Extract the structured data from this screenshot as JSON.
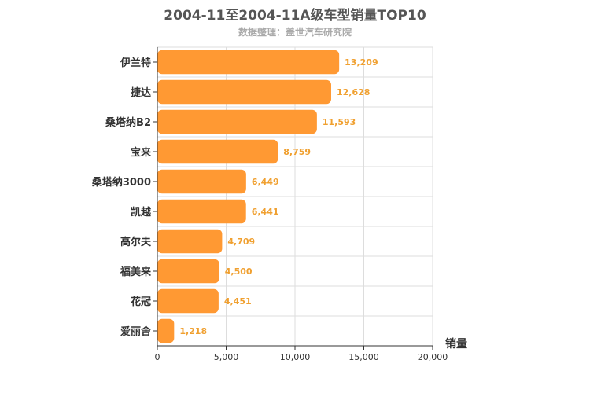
{
  "chart_data": {
    "type": "bar",
    "orientation": "horizontal",
    "title": "2004-11至2004-11A级车型销量TOP10",
    "subtitle": "数据整理：盖世汽车研究院",
    "categories": [
      "伊兰特",
      "捷达",
      "桑塔纳B2",
      "宝来",
      "桑塔纳3000",
      "凯越",
      "高尔夫",
      "福美来",
      "花冠",
      "爱丽舍"
    ],
    "values": [
      13209,
      12628,
      11593,
      8759,
      6449,
      6441,
      4709,
      4500,
      4451,
      1218
    ],
    "value_labels": [
      "13,209",
      "12,628",
      "11,593",
      "8,759",
      "6,449",
      "6,441",
      "4,709",
      "4,500",
      "4,451",
      "1,218"
    ],
    "xlabel": "销量",
    "ylabel": "",
    "xlim": [
      0,
      20000
    ],
    "x_ticks": [
      0,
      5000,
      10000,
      15000,
      20000
    ],
    "x_tick_labels": [
      "0",
      "5,000",
      "10,000",
      "15,000",
      "20,000"
    ],
    "grid": true,
    "legend": "none",
    "colors": {
      "bar": "#ff9933",
      "label": "#f0a030",
      "grid": "#dddddd",
      "axis": "#333333"
    }
  }
}
